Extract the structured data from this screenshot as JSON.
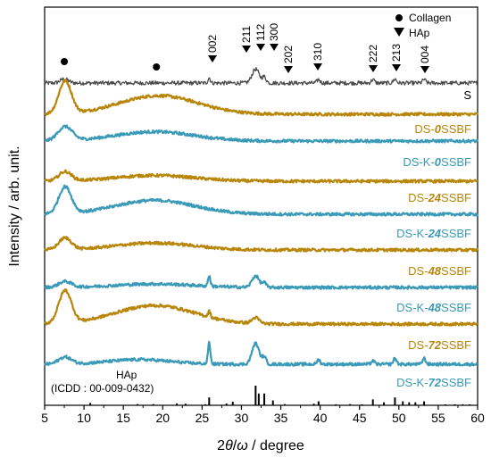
{
  "chart_data": {
    "type": "line",
    "xlabel": {
      "prefix": "2",
      "theta": "θ",
      "slash": "/",
      "omega": "ω",
      "suffix": " / degree"
    },
    "ylabel": "Intensity / arb. unit.",
    "xlim": [
      5,
      60
    ],
    "xticks": [
      5,
      10,
      15,
      20,
      25,
      30,
      35,
      40,
      45,
      50,
      55,
      60
    ],
    "grid": false,
    "colors": {
      "S": "#4a4a4a",
      "DS": "#b8860b",
      "DS-K": "#3a9ab8",
      "reference": "#000000"
    },
    "legend": {
      "placement": "top-right",
      "items": [
        {
          "label": "Collagen",
          "marker": "circle"
        },
        {
          "label": "HAp",
          "marker": "triangle-down"
        }
      ]
    },
    "series": [
      {
        "name": "S",
        "label_parts": [
          {
            "t": "S",
            "b": false
          }
        ],
        "color": "S",
        "features": [
          {
            "x": 7.5,
            "h": 0.35,
            "w": 0.5
          },
          {
            "x": 25.9,
            "h": 0.45,
            "w": 0.15
          },
          {
            "x": 31.8,
            "h": 1.2,
            "w": 0.45
          },
          {
            "x": 32.9,
            "h": 0.5,
            "w": 0.25
          },
          {
            "x": 39.8,
            "h": 0.3,
            "w": 0.2
          },
          {
            "x": 46.7,
            "h": 0.3,
            "w": 0.2
          },
          {
            "x": 49.5,
            "h": 0.35,
            "w": 0.2
          },
          {
            "x": 53.2,
            "h": 0.3,
            "w": 0.2
          }
        ]
      },
      {
        "name": "DS-0SSBF",
        "label_parts": [
          {
            "t": "DS-",
            "b": false
          },
          {
            "t": "0",
            "b": true
          },
          {
            "t": "SSBF",
            "b": false
          }
        ],
        "color": "DS",
        "features": [
          {
            "x": 7.6,
            "h": 2.8,
            "w": 0.8
          },
          {
            "x": 19.5,
            "h": 1.6,
            "w": 5.0
          }
        ]
      },
      {
        "name": "DS-K-0SSBF",
        "label_parts": [
          {
            "t": "DS-K-",
            "b": false
          },
          {
            "t": "0",
            "b": true
          },
          {
            "t": "SSBF",
            "b": false
          }
        ],
        "color": "DS-K",
        "features": [
          {
            "x": 7.6,
            "h": 1.2,
            "w": 0.9
          },
          {
            "x": 19.0,
            "h": 0.8,
            "w": 5.0
          }
        ]
      },
      {
        "name": "DS-24SSBF",
        "label_parts": [
          {
            "t": "DS-",
            "b": false
          },
          {
            "t": "24",
            "b": true
          },
          {
            "t": "SSBF",
            "b": false
          }
        ],
        "color": "DS",
        "features": [
          {
            "x": 7.6,
            "h": 0.8,
            "w": 0.8
          },
          {
            "x": 19.0,
            "h": 0.5,
            "w": 5.0
          }
        ]
      },
      {
        "name": "DS-K-24SSBF",
        "label_parts": [
          {
            "t": "DS-K-",
            "b": false
          },
          {
            "t": "24",
            "b": true
          },
          {
            "t": "SSBF",
            "b": false
          }
        ],
        "color": "DS-K",
        "features": [
          {
            "x": 7.6,
            "h": 2.3,
            "w": 0.8
          },
          {
            "x": 19.0,
            "h": 1.2,
            "w": 5.0
          }
        ]
      },
      {
        "name": "DS-48SSBF",
        "label_parts": [
          {
            "t": "DS-",
            "b": false
          },
          {
            "t": "48",
            "b": true
          },
          {
            "t": "SSBF",
            "b": false
          }
        ],
        "color": "DS",
        "features": [
          {
            "x": 7.6,
            "h": 1.0,
            "w": 0.8
          },
          {
            "x": 19.0,
            "h": 0.6,
            "w": 5.0
          }
        ]
      },
      {
        "name": "DS-K-48SSBF",
        "label_parts": [
          {
            "t": "DS-K-",
            "b": false
          },
          {
            "t": "48",
            "b": true
          },
          {
            "t": "SSBF",
            "b": false
          }
        ],
        "color": "DS-K",
        "features": [
          {
            "x": 7.6,
            "h": 0.5,
            "w": 0.8
          },
          {
            "x": 19.0,
            "h": 0.3,
            "w": 5.0
          },
          {
            "x": 25.9,
            "h": 0.9,
            "w": 0.15
          },
          {
            "x": 31.8,
            "h": 1.0,
            "w": 0.45
          },
          {
            "x": 32.9,
            "h": 0.4,
            "w": 0.25
          }
        ]
      },
      {
        "name": "DS-72SSBF",
        "label_parts": [
          {
            "t": "DS-",
            "b": false
          },
          {
            "t": "72",
            "b": true
          },
          {
            "t": "SSBF",
            "b": false
          }
        ],
        "color": "DS",
        "features": [
          {
            "x": 7.6,
            "h": 2.8,
            "w": 0.8
          },
          {
            "x": 19.0,
            "h": 1.6,
            "w": 5.0
          },
          {
            "x": 25.9,
            "h": 0.5,
            "w": 0.15
          },
          {
            "x": 31.8,
            "h": 0.5,
            "w": 0.45
          }
        ]
      },
      {
        "name": "DS-K-72SSBF",
        "label_parts": [
          {
            "t": "DS-K-",
            "b": false
          },
          {
            "t": "72",
            "b": true
          },
          {
            "t": "SSBF",
            "b": false
          }
        ],
        "color": "DS-K",
        "features": [
          {
            "x": 7.6,
            "h": 0.6,
            "w": 0.8
          },
          {
            "x": 17.0,
            "h": 0.4,
            "w": 4.0
          },
          {
            "x": 25.9,
            "h": 1.8,
            "w": 0.15
          },
          {
            "x": 31.8,
            "h": 1.8,
            "w": 0.45
          },
          {
            "x": 32.9,
            "h": 0.6,
            "w": 0.25
          },
          {
            "x": 39.8,
            "h": 0.4,
            "w": 0.2
          },
          {
            "x": 46.7,
            "h": 0.3,
            "w": 0.2
          },
          {
            "x": 49.5,
            "h": 0.5,
            "w": 0.2
          },
          {
            "x": 53.2,
            "h": 0.5,
            "w": 0.2
          }
        ]
      }
    ],
    "collagen_markers": [
      7.5,
      19.2
    ],
    "hap_peaks": [
      {
        "label": "002",
        "x": 25.9
      },
      {
        "label": "211",
        "x": 31.8
      },
      {
        "label": "112",
        "x": 32.2
      },
      {
        "label": "300",
        "x": 32.9
      },
      {
        "label": "202",
        "x": 34.0
      },
      {
        "label": "310",
        "x": 39.8
      },
      {
        "label": "222",
        "x": 46.7
      },
      {
        "label": "213",
        "x": 49.5
      },
      {
        "label": "004",
        "x": 53.2
      }
    ],
    "reference": {
      "title": "HAp",
      "source": "(ICDD : 00-009-0432)",
      "lines": [
        {
          "x": 10.8,
          "i": 0.12
        },
        {
          "x": 16.8,
          "i": 0.06
        },
        {
          "x": 18.8,
          "i": 0.06
        },
        {
          "x": 21.8,
          "i": 0.1
        },
        {
          "x": 22.9,
          "i": 0.08
        },
        {
          "x": 25.4,
          "i": 0.05
        },
        {
          "x": 25.9,
          "i": 0.4
        },
        {
          "x": 28.1,
          "i": 0.09
        },
        {
          "x": 28.9,
          "i": 0.18
        },
        {
          "x": 31.8,
          "i": 1.0
        },
        {
          "x": 32.2,
          "i": 0.6
        },
        {
          "x": 32.9,
          "i": 0.6
        },
        {
          "x": 34.0,
          "i": 0.25
        },
        {
          "x": 35.5,
          "i": 0.06
        },
        {
          "x": 39.2,
          "i": 0.08
        },
        {
          "x": 39.8,
          "i": 0.2
        },
        {
          "x": 42.0,
          "i": 0.05
        },
        {
          "x": 43.8,
          "i": 0.06
        },
        {
          "x": 45.3,
          "i": 0.05
        },
        {
          "x": 46.7,
          "i": 0.3
        },
        {
          "x": 48.1,
          "i": 0.15
        },
        {
          "x": 49.5,
          "i": 0.4
        },
        {
          "x": 50.5,
          "i": 0.2
        },
        {
          "x": 51.3,
          "i": 0.15
        },
        {
          "x": 52.1,
          "i": 0.15
        },
        {
          "x": 53.2,
          "i": 0.2
        },
        {
          "x": 55.9,
          "i": 0.05
        },
        {
          "x": 57.1,
          "i": 0.05
        },
        {
          "x": 58.1,
          "i": 0.05
        },
        {
          "x": 59.0,
          "i": 0.05
        }
      ]
    }
  }
}
